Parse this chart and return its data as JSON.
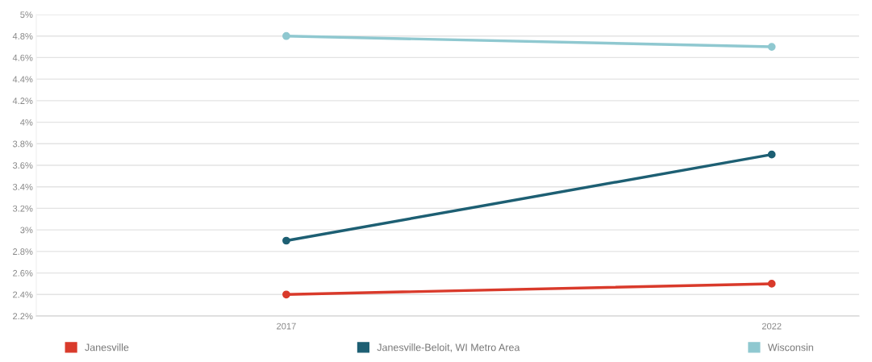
{
  "chart_data": {
    "type": "line",
    "categories": [
      "2017",
      "2022"
    ],
    "series": [
      {
        "name": "Janesville",
        "color": "#d93a2b",
        "values": [
          2.4,
          2.5
        ]
      },
      {
        "name": "Janesville-Beloit, WI Metro Area",
        "color": "#1d5f73",
        "values": [
          2.9,
          3.7
        ]
      },
      {
        "name": "Wisconsin",
        "color": "#8fc8d0",
        "values": [
          4.8,
          4.7
        ]
      }
    ],
    "ylim": [
      2.2,
      5
    ],
    "yticks": [
      {
        "value": 2.2,
        "label": "2.2%"
      },
      {
        "value": 2.4,
        "label": "2.4%"
      },
      {
        "value": 2.6,
        "label": "2.6%"
      },
      {
        "value": 2.8,
        "label": "2.8%"
      },
      {
        "value": 3,
        "label": "3%"
      },
      {
        "value": 3.2,
        "label": "3.2%"
      },
      {
        "value": 3.4,
        "label": "3.4%"
      },
      {
        "value": 3.6,
        "label": "3.6%"
      },
      {
        "value": 3.8,
        "label": "3.8%"
      },
      {
        "value": 4,
        "label": "4%"
      },
      {
        "value": 4.2,
        "label": "4.2%"
      },
      {
        "value": 4.4,
        "label": "4.4%"
      },
      {
        "value": 4.6,
        "label": "4.6%"
      },
      {
        "value": 4.8,
        "label": "4.8%"
      },
      {
        "value": 5,
        "label": "5%"
      }
    ],
    "grid": "y",
    "legend": "bottom",
    "marker": "circle",
    "line_style": "solid"
  }
}
